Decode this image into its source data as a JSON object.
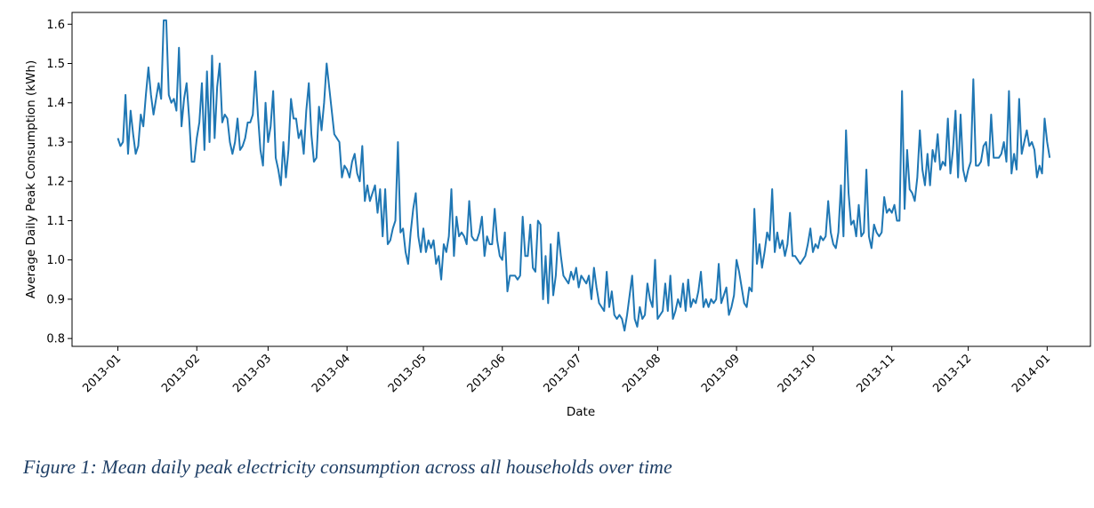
{
  "caption": "Figure 1: Mean daily peak electricity consumption across all households over time",
  "colors": {
    "line": "#1f77b4",
    "axes": "#000000",
    "caption": "#1f3f66"
  },
  "chart_data": {
    "type": "line",
    "xlabel": "Date",
    "ylabel": "Average Daily Peak Consumption (kWh)",
    "x_tick_labels": [
      "2013-01",
      "2013-02",
      "2013-03",
      "2013-04",
      "2013-05",
      "2013-06",
      "2013-07",
      "2013-08",
      "2013-09",
      "2013-10",
      "2013-11",
      "2013-12",
      "2014-01"
    ],
    "y_ticks": [
      0.8,
      0.9,
      1.0,
      1.1,
      1.2,
      1.3,
      1.4,
      1.5,
      1.6
    ],
    "xlim": [
      "2012-12-14",
      "2014-01-18"
    ],
    "ylim": [
      0.78,
      1.63
    ],
    "grid": false,
    "series": [
      {
        "x_start": "2013-01-01",
        "x_step": "1 day",
        "values": [
          1.31,
          1.29,
          1.3,
          1.42,
          1.27,
          1.38,
          1.32,
          1.27,
          1.29,
          1.37,
          1.34,
          1.42,
          1.49,
          1.42,
          1.37,
          1.41,
          1.45,
          1.41,
          1.61,
          1.61,
          1.42,
          1.4,
          1.41,
          1.38,
          1.54,
          1.34,
          1.41,
          1.45,
          1.36,
          1.25,
          1.25,
          1.31,
          1.35,
          1.45,
          1.28,
          1.48,
          1.3,
          1.52,
          1.31,
          1.44,
          1.5,
          1.35,
          1.37,
          1.36,
          1.3,
          1.27,
          1.3,
          1.36,
          1.28,
          1.29,
          1.31,
          1.35,
          1.35,
          1.37,
          1.48,
          1.37,
          1.28,
          1.24,
          1.4,
          1.3,
          1.34,
          1.43,
          1.26,
          1.23,
          1.19,
          1.3,
          1.21,
          1.28,
          1.41,
          1.36,
          1.36,
          1.31,
          1.33,
          1.27,
          1.38,
          1.45,
          1.32,
          1.25,
          1.26,
          1.39,
          1.33,
          1.4,
          1.5,
          1.44,
          1.38,
          1.32,
          1.31,
          1.3,
          1.21,
          1.24,
          1.23,
          1.21,
          1.25,
          1.27,
          1.22,
          1.2,
          1.29,
          1.15,
          1.19,
          1.15,
          1.17,
          1.19,
          1.12,
          1.18,
          1.06,
          1.18,
          1.04,
          1.05,
          1.08,
          1.1,
          1.3,
          1.07,
          1.08,
          1.02,
          0.99,
          1.07,
          1.13,
          1.17,
          1.06,
          1.02,
          1.08,
          1.02,
          1.05,
          1.03,
          1.05,
          0.99,
          1.01,
          0.95,
          1.04,
          1.02,
          1.06,
          1.18,
          1.01,
          1.11,
          1.06,
          1.07,
          1.06,
          1.04,
          1.15,
          1.06,
          1.05,
          1.05,
          1.07,
          1.11,
          1.01,
          1.06,
          1.04,
          1.04,
          1.13,
          1.05,
          1.01,
          1.0,
          1.07,
          0.92,
          0.96,
          0.96,
          0.96,
          0.95,
          0.96,
          1.11,
          1.01,
          1.01,
          1.09,
          0.98,
          0.97,
          1.1,
          1.09,
          0.9,
          1.01,
          0.89,
          1.04,
          0.91,
          0.96,
          1.07,
          1.01,
          0.96,
          0.95,
          0.94,
          0.97,
          0.95,
          0.98,
          0.93,
          0.96,
          0.95,
          0.94,
          0.96,
          0.9,
          0.98,
          0.93,
          0.89,
          0.88,
          0.87,
          0.97,
          0.88,
          0.92,
          0.86,
          0.85,
          0.86,
          0.85,
          0.82,
          0.86,
          0.91,
          0.96,
          0.85,
          0.83,
          0.88,
          0.85,
          0.86,
          0.94,
          0.9,
          0.88,
          1.0,
          0.85,
          0.86,
          0.87,
          0.94,
          0.87,
          0.96,
          0.85,
          0.87,
          0.9,
          0.88,
          0.94,
          0.87,
          0.95,
          0.88,
          0.9,
          0.89,
          0.92,
          0.97,
          0.88,
          0.9,
          0.88,
          0.9,
          0.89,
          0.9,
          0.99,
          0.89,
          0.91,
          0.93,
          0.86,
          0.88,
          0.91,
          1.0,
          0.97,
          0.93,
          0.89,
          0.88,
          0.93,
          0.92,
          1.13,
          0.99,
          1.04,
          0.98,
          1.02,
          1.07,
          1.05,
          1.18,
          1.02,
          1.07,
          1.03,
          1.05,
          1.01,
          1.04,
          1.12,
          1.01,
          1.01,
          1.0,
          0.99,
          1.0,
          1.01,
          1.04,
          1.08,
          1.02,
          1.04,
          1.03,
          1.06,
          1.05,
          1.06,
          1.15,
          1.07,
          1.04,
          1.03,
          1.07,
          1.19,
          1.06,
          1.33,
          1.17,
          1.09,
          1.1,
          1.06,
          1.14,
          1.06,
          1.07,
          1.23,
          1.06,
          1.03,
          1.09,
          1.07,
          1.06,
          1.07,
          1.16,
          1.12,
          1.13,
          1.12,
          1.14,
          1.1,
          1.1,
          1.43,
          1.13,
          1.28,
          1.18,
          1.17,
          1.15,
          1.21,
          1.33,
          1.23,
          1.19,
          1.27,
          1.19,
          1.28,
          1.25,
          1.32,
          1.23,
          1.25,
          1.24,
          1.36,
          1.22,
          1.28,
          1.38,
          1.21,
          1.37,
          1.23,
          1.2,
          1.23,
          1.25,
          1.46,
          1.24,
          1.24,
          1.25,
          1.29,
          1.3,
          1.24,
          1.37,
          1.26,
          1.26,
          1.26,
          1.27,
          1.3,
          1.25,
          1.43,
          1.22,
          1.27,
          1.23,
          1.41,
          1.27,
          1.3,
          1.33,
          1.29,
          1.3,
          1.28,
          1.21,
          1.24,
          1.22,
          1.36,
          1.3,
          1.26
        ]
      }
    ]
  }
}
